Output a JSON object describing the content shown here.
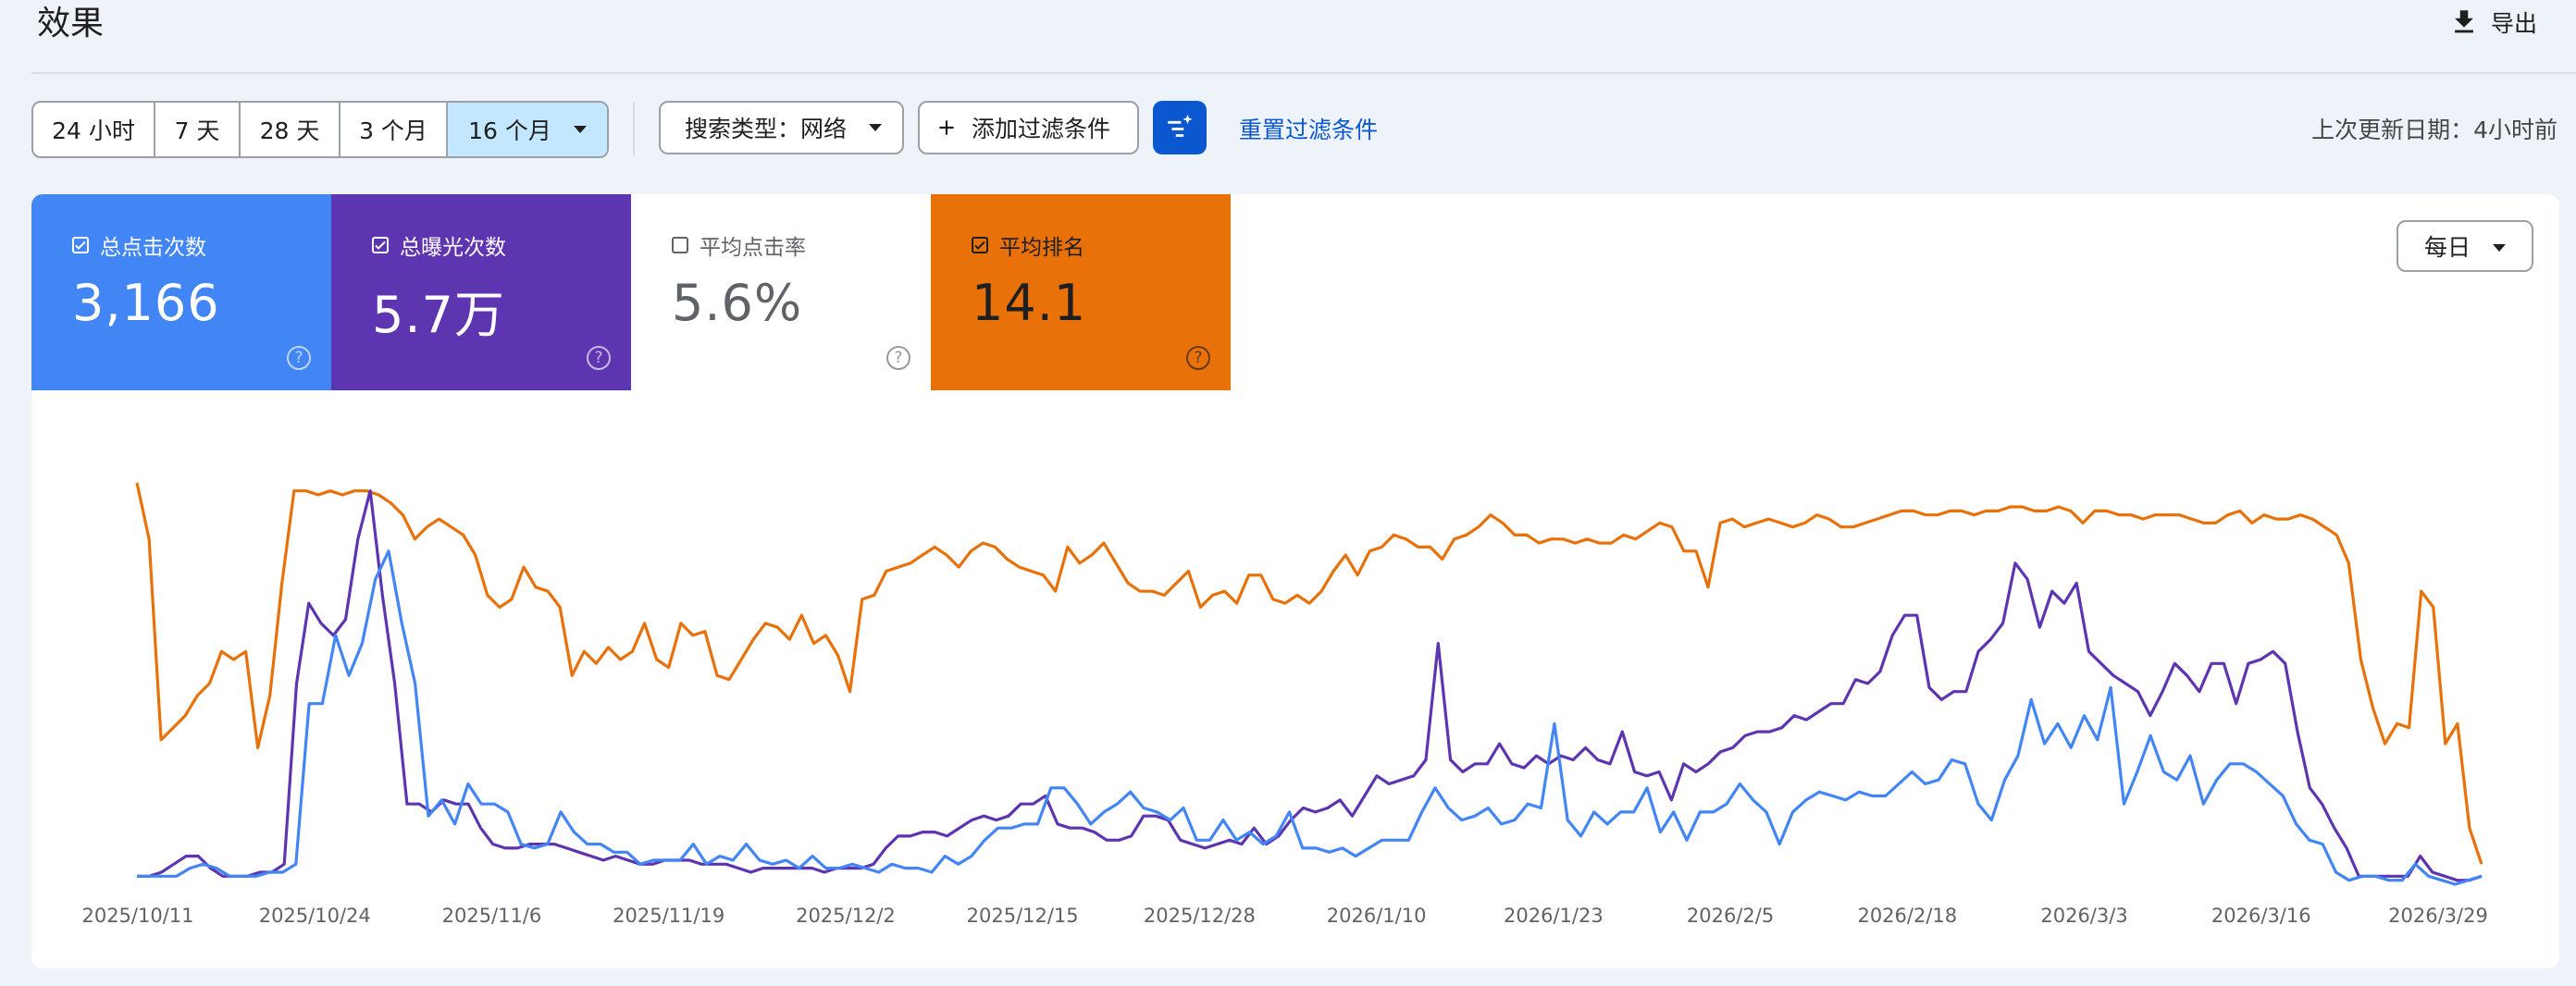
{
  "header": {
    "title": "效果",
    "export_label": "导出"
  },
  "toolbar": {
    "ranges": [
      "24 小时",
      "7 天",
      "28 天",
      "3 个月",
      "16 个月"
    ],
    "search_type": "搜索类型：网络",
    "add_filter": "添加过滤条件",
    "reset_filters": "重置过滤条件",
    "last_updated": "上次更新日期：4小时前"
  },
  "metrics": [
    {
      "label": "总点击次数",
      "value": "3,166",
      "checked": true,
      "color": "#4285f4"
    },
    {
      "label": "总曝光次数",
      "value": "5.7万",
      "checked": true,
      "color": "#5e35b1"
    },
    {
      "label": "平均点击率",
      "value": "5.6%",
      "checked": false,
      "color": "#ffffff"
    },
    {
      "label": "平均排名",
      "value": "14.1",
      "checked": true,
      "color": "#e8710a"
    }
  ],
  "granularity": "每日",
  "chart_data": {
    "type": "line",
    "x_tick_labels": [
      "2025/10/11",
      "2025/10/24",
      "2025/11/6",
      "2025/11/19",
      "2025/12/2",
      "2025/12/15",
      "2025/12/28",
      "2026/1/10",
      "2026/1/23",
      "2026/2/5",
      "2026/2/18",
      "2026/3/3",
      "2026/3/16",
      "2026/3/29"
    ],
    "x_start": "2025/10/11",
    "x_end": "2026/3/31",
    "y_axis_visible": false,
    "grid": false,
    "series": [
      {
        "name": "总点击次数",
        "color": "#4285f4",
        "y_relative": [
          0.02,
          0.02,
          0.02,
          0.02,
          0.04,
          0.05,
          0.04,
          0.02,
          0.02,
          0.02,
          0.03,
          0.03,
          0.05,
          0.45,
          0.45,
          0.62,
          0.52,
          0.6,
          0.76,
          0.83,
          0.65,
          0.5,
          0.17,
          0.21,
          0.15,
          0.25,
          0.2,
          0.2,
          0.18,
          0.1,
          0.09,
          0.1,
          0.18,
          0.13,
          0.1,
          0.1,
          0.08,
          0.08,
          0.05,
          0.06,
          0.06,
          0.06,
          0.1,
          0.05,
          0.07,
          0.06,
          0.1,
          0.06,
          0.05,
          0.06,
          0.04,
          0.07,
          0.04,
          0.04,
          0.05,
          0.04,
          0.03,
          0.05,
          0.04,
          0.04,
          0.03,
          0.07,
          0.05,
          0.07,
          0.11,
          0.14,
          0.14,
          0.15,
          0.15,
          0.24,
          0.24,
          0.2,
          0.15,
          0.18,
          0.2,
          0.23,
          0.19,
          0.18,
          0.16,
          0.19,
          0.11,
          0.11,
          0.16,
          0.11,
          0.13,
          0.1,
          0.12,
          0.18,
          0.09,
          0.09,
          0.08,
          0.09,
          0.07,
          0.09,
          0.11,
          0.11,
          0.11,
          0.18,
          0.24,
          0.19,
          0.16,
          0.17,
          0.19,
          0.15,
          0.16,
          0.2,
          0.19,
          0.4,
          0.16,
          0.12,
          0.18,
          0.15,
          0.18,
          0.18,
          0.24,
          0.13,
          0.18,
          0.11,
          0.18,
          0.18,
          0.2,
          0.25,
          0.21,
          0.18,
          0.1,
          0.18,
          0.21,
          0.23,
          0.22,
          0.21,
          0.23,
          0.22,
          0.22,
          0.25,
          0.28,
          0.25,
          0.26,
          0.31,
          0.3,
          0.2,
          0.16,
          0.26,
          0.32,
          0.46,
          0.35,
          0.4,
          0.34,
          0.42,
          0.36,
          0.49,
          0.2,
          0.28,
          0.37,
          0.28,
          0.26,
          0.32,
          0.2,
          0.26,
          0.3,
          0.3,
          0.28,
          0.25,
          0.22,
          0.15,
          0.11,
          0.1,
          0.03,
          0.01,
          0.02,
          0.02,
          0.01,
          0.01,
          0.05,
          0.02,
          0.01,
          0.0,
          0.01,
          0.02
        ]
      },
      {
        "name": "总曝光次数",
        "color": "#5e35b1",
        "y_relative": [
          0.02,
          0.02,
          0.03,
          0.05,
          0.07,
          0.07,
          0.04,
          0.02,
          0.02,
          0.02,
          0.03,
          0.03,
          0.05,
          0.5,
          0.7,
          0.65,
          0.62,
          0.66,
          0.86,
          0.98,
          0.72,
          0.5,
          0.2,
          0.2,
          0.18,
          0.21,
          0.2,
          0.2,
          0.14,
          0.1,
          0.09,
          0.09,
          0.1,
          0.1,
          0.1,
          0.09,
          0.08,
          0.07,
          0.06,
          0.07,
          0.06,
          0.05,
          0.05,
          0.06,
          0.06,
          0.06,
          0.05,
          0.05,
          0.05,
          0.04,
          0.03,
          0.04,
          0.04,
          0.04,
          0.04,
          0.04,
          0.03,
          0.04,
          0.04,
          0.04,
          0.05,
          0.09,
          0.12,
          0.12,
          0.13,
          0.13,
          0.12,
          0.14,
          0.16,
          0.17,
          0.16,
          0.17,
          0.2,
          0.2,
          0.22,
          0.15,
          0.14,
          0.14,
          0.13,
          0.11,
          0.11,
          0.12,
          0.17,
          0.17,
          0.16,
          0.11,
          0.1,
          0.09,
          0.1,
          0.11,
          0.1,
          0.14,
          0.1,
          0.12,
          0.16,
          0.19,
          0.18,
          0.19,
          0.21,
          0.17,
          0.22,
          0.27,
          0.25,
          0.26,
          0.27,
          0.31,
          0.6,
          0.31,
          0.28,
          0.3,
          0.3,
          0.35,
          0.3,
          0.29,
          0.32,
          0.3,
          0.32,
          0.31,
          0.34,
          0.31,
          0.3,
          0.38,
          0.28,
          0.27,
          0.28,
          0.21,
          0.3,
          0.28,
          0.3,
          0.33,
          0.34,
          0.37,
          0.38,
          0.38,
          0.39,
          0.42,
          0.41,
          0.43,
          0.45,
          0.45,
          0.51,
          0.5,
          0.53,
          0.62,
          0.67,
          0.67,
          0.49,
          0.46,
          0.48,
          0.48,
          0.58,
          0.61,
          0.65,
          0.8,
          0.76,
          0.64,
          0.73,
          0.7,
          0.75,
          0.58,
          0.55,
          0.52,
          0.5,
          0.48,
          0.42,
          0.48,
          0.55,
          0.52,
          0.48,
          0.55,
          0.55,
          0.45,
          0.55,
          0.56,
          0.58,
          0.55,
          0.38,
          0.24,
          0.2,
          0.14,
          0.09,
          0.02,
          0.02,
          0.02,
          0.02,
          0.02,
          0.07,
          0.03,
          0.02,
          0.01,
          0.01,
          0.02
        ]
      },
      {
        "name": "平均排名",
        "color": "#e8710a",
        "y_relative": [
          1.0,
          0.86,
          0.36,
          0.39,
          0.42,
          0.47,
          0.5,
          0.58,
          0.56,
          0.58,
          0.34,
          0.47,
          0.75,
          0.98,
          0.98,
          0.97,
          0.98,
          0.97,
          0.98,
          0.98,
          0.97,
          0.95,
          0.92,
          0.86,
          0.89,
          0.91,
          0.89,
          0.87,
          0.82,
          0.72,
          0.69,
          0.71,
          0.79,
          0.74,
          0.73,
          0.69,
          0.52,
          0.58,
          0.55,
          0.59,
          0.56,
          0.58,
          0.65,
          0.56,
          0.54,
          0.65,
          0.62,
          0.63,
          0.52,
          0.51,
          0.56,
          0.61,
          0.65,
          0.64,
          0.61,
          0.67,
          0.6,
          0.62,
          0.57,
          0.48,
          0.71,
          0.72,
          0.78,
          0.79,
          0.8,
          0.82,
          0.84,
          0.82,
          0.79,
          0.83,
          0.85,
          0.84,
          0.81,
          0.79,
          0.78,
          0.77,
          0.73,
          0.84,
          0.8,
          0.82,
          0.85,
          0.8,
          0.75,
          0.73,
          0.73,
          0.72,
          0.75,
          0.78,
          0.69,
          0.72,
          0.73,
          0.7,
          0.77,
          0.77,
          0.71,
          0.7,
          0.72,
          0.7,
          0.73,
          0.78,
          0.82,
          0.77,
          0.83,
          0.84,
          0.87,
          0.86,
          0.84,
          0.84,
          0.81,
          0.86,
          0.87,
          0.89,
          0.92,
          0.9,
          0.87,
          0.87,
          0.85,
          0.86,
          0.86,
          0.85,
          0.86,
          0.85,
          0.85,
          0.87,
          0.86,
          0.88,
          0.9,
          0.89,
          0.83,
          0.83,
          0.74,
          0.9,
          0.91,
          0.89,
          0.9,
          0.91,
          0.9,
          0.89,
          0.9,
          0.92,
          0.91,
          0.89,
          0.89,
          0.9,
          0.91,
          0.92,
          0.93,
          0.93,
          0.92,
          0.92,
          0.93,
          0.93,
          0.92,
          0.93,
          0.93,
          0.94,
          0.94,
          0.93,
          0.93,
          0.94,
          0.93,
          0.9,
          0.93,
          0.93,
          0.92,
          0.92,
          0.91,
          0.92,
          0.92,
          0.92,
          0.91,
          0.9,
          0.9,
          0.92,
          0.93,
          0.9,
          0.92,
          0.91,
          0.91,
          0.92,
          0.91,
          0.89,
          0.87,
          0.8,
          0.56,
          0.44,
          0.35,
          0.4,
          0.39,
          0.73,
          0.69,
          0.35,
          0.4,
          0.14,
          0.05
        ]
      }
    ]
  }
}
